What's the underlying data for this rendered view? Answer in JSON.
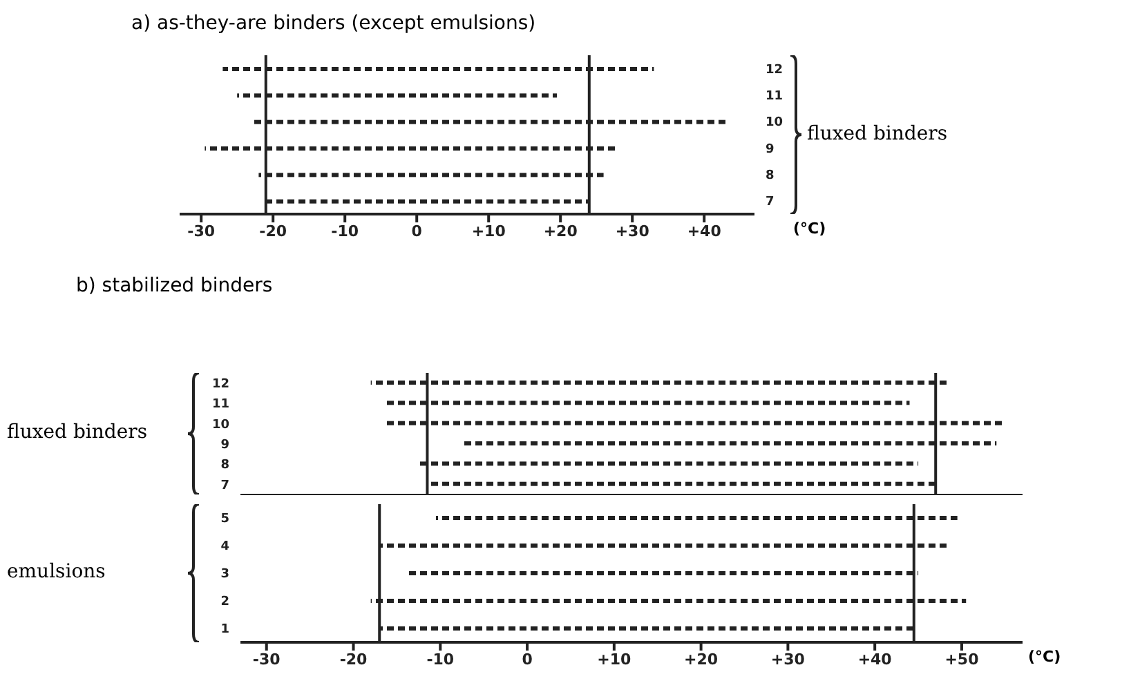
{
  "chart_data": [
    {
      "type": "bar",
      "orientation": "horizontal",
      "title": "a) as-they-are binders (except emulsions)",
      "ylabel": "fluxed binders",
      "xlabel": "(°C)",
      "categories": [
        "12",
        "11",
        "10",
        "9",
        "8",
        "7"
      ],
      "base": [
        -27,
        -25,
        -23,
        -29.5,
        -22,
        -21
      ],
      "values": [
        60,
        44.5,
        66,
        57.5,
        48,
        45
      ],
      "color": "#222222",
      "line_style": "dashed",
      "xlim": [
        -33,
        47
      ],
      "xticks": [
        -30,
        -20,
        -10,
        0,
        {
          "value": 10,
          "label": "+10"
        },
        {
          "value": 20,
          "label": "+20"
        },
        {
          "value": 30,
          "label": "+30"
        },
        {
          "value": 40,
          "label": "+40"
        }
      ],
      "ref_lines": [
        {
          "axis": "x",
          "value": -21,
          "color": "#222222"
        },
        {
          "axis": "x",
          "value": 24,
          "color": "#222222"
        }
      ]
    },
    {
      "type": "bar",
      "orientation": "horizontal",
      "title": "b) stabilized binders",
      "ylabel": "fluxed binders",
      "categories": [
        "12",
        "11",
        "10",
        "9",
        "8",
        "7"
      ],
      "base": [
        -18,
        -16.5,
        -16.5,
        -7.5,
        -12.5,
        -11.5
      ],
      "values": [
        66.5,
        60.5,
        71.5,
        61.5,
        57.5,
        58.5
      ],
      "color": "#222222",
      "line_style": "dashed",
      "xlim": [
        -33,
        57
      ],
      "tick_labels": "y",
      "ref_lines": [
        {
          "axis": "x",
          "value": -11.5,
          "color": "#222222"
        },
        {
          "axis": "x",
          "value": 47,
          "color": "#222222"
        }
      ]
    },
    {
      "type": "bar",
      "orientation": "horizontal",
      "ylabel": "emulsions",
      "xlabel": "(°C)",
      "categories": [
        "5",
        "4",
        "3",
        "2",
        "1"
      ],
      "base": [
        -10.5,
        -17,
        -14,
        -18,
        -17
      ],
      "values": [
        60,
        65.5,
        59,
        68.5,
        61.5
      ],
      "color": "#222222",
      "line_style": "dashed",
      "xlim": [
        -33,
        57
      ],
      "xticks": [
        -30,
        -20,
        -10,
        0,
        {
          "value": 10,
          "label": "+10"
        },
        {
          "value": 20,
          "label": "+20"
        },
        {
          "value": 30,
          "label": "+30"
        },
        {
          "value": 40,
          "label": "+40"
        },
        {
          "value": 50,
          "label": "+50"
        }
      ],
      "ref_lines": [
        {
          "axis": "x",
          "value": -17,
          "color": "#222222"
        },
        {
          "axis": "x",
          "value": 44.5,
          "color": "#222222"
        }
      ]
    }
  ]
}
